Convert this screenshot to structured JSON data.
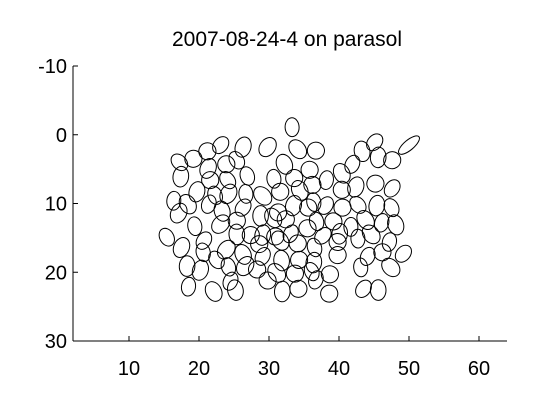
{
  "chart_data": {
    "type": "scatter",
    "title": "2007-08-24-4 on parasol",
    "xlabel": "",
    "ylabel": "",
    "xlim": [
      2,
      64
    ],
    "ylim": [
      -10,
      30
    ],
    "y_axis_reversed": true,
    "grid": false,
    "legend": "none",
    "x_ticks": [
      "10",
      "20",
      "30",
      "40",
      "50",
      "60"
    ],
    "x_tick_values": [
      10,
      20,
      30,
      40,
      50,
      60
    ],
    "y_ticks": [
      "-10",
      "0",
      "10",
      "20",
      "30"
    ],
    "y_tick_values": [
      -10,
      0,
      10,
      20,
      30
    ],
    "series": [
      {
        "marker": "ellipse",
        "points": [
          [
            17.2,
            4.0
          ],
          [
            17.4,
            6.1
          ],
          [
            19.2,
            3.5
          ],
          [
            21.3,
            4.9
          ],
          [
            21.2,
            2.4
          ],
          [
            23.1,
            1.5
          ],
          [
            23.9,
            4.3
          ],
          [
            25.4,
            3.7
          ],
          [
            26.3,
            1.8
          ],
          [
            26.9,
            6.0
          ],
          [
            29.8,
            1.8
          ],
          [
            33.3,
            -1.1
          ],
          [
            34.1,
            2.1
          ],
          [
            36.7,
            2.3
          ],
          [
            32.2,
            4.3
          ],
          [
            35.8,
            5.1
          ],
          [
            30.7,
            6.4
          ],
          [
            33.6,
            6.3
          ],
          [
            38.2,
            6.6
          ],
          [
            40.4,
            5.6
          ],
          [
            41.9,
            4.3
          ],
          [
            43.3,
            2.4
          ],
          [
            45.1,
            1.1
          ],
          [
            45.6,
            3.3
          ],
          [
            47.6,
            3.7
          ],
          [
            42.4,
            7.6
          ],
          [
            45.2,
            7.1
          ],
          [
            47.6,
            7.8
          ],
          [
            21.6,
            6.6
          ],
          [
            24.1,
            6.6
          ],
          [
            19.7,
            8.3
          ],
          [
            22.3,
            8.8
          ],
          [
            24.2,
            8.6
          ],
          [
            26.7,
            8.6
          ],
          [
            29.1,
            8.9
          ],
          [
            31.6,
            8.3
          ],
          [
            34.4,
            8.1
          ],
          [
            36.2,
            7.3
          ],
          [
            36.4,
            9.8
          ],
          [
            40.4,
            8.0
          ],
          [
            16.4,
            9.6
          ],
          [
            18.4,
            10.1
          ],
          [
            21.4,
            10.1
          ],
          [
            23.3,
            11.1
          ],
          [
            26.3,
            10.6
          ],
          [
            28.8,
            11.8
          ],
          [
            31.3,
            11.3
          ],
          [
            33.5,
            10.3
          ],
          [
            35.6,
            10.6
          ],
          [
            38.1,
            10.3
          ],
          [
            40.5,
            10.6
          ],
          [
            42.7,
            10.2
          ],
          [
            45.4,
            10.3
          ],
          [
            47.5,
            10.6
          ],
          [
            17.1,
            11.4
          ],
          [
            19.4,
            13.3
          ],
          [
            23.1,
            13.0
          ],
          [
            25.4,
            12.5
          ],
          [
            30.6,
            12.1
          ],
          [
            32.4,
            12.3
          ],
          [
            36.8,
            12.6
          ],
          [
            39.2,
            12.6
          ],
          [
            41.7,
            13.4
          ],
          [
            43.8,
            12.4
          ],
          [
            46.1,
            12.8
          ],
          [
            48.1,
            13.1
          ],
          [
            20.7,
            15.4
          ],
          [
            25.4,
            14.5
          ],
          [
            27.4,
            14.6
          ],
          [
            29.1,
            14.6
          ],
          [
            30.9,
            14.8
          ],
          [
            33.1,
            14.4
          ],
          [
            35.5,
            13.6
          ],
          [
            37.7,
            14.7
          ],
          [
            40.1,
            14.4
          ],
          [
            15.4,
            14.9
          ],
          [
            17.5,
            16.4
          ],
          [
            20.6,
            17.1
          ],
          [
            23.9,
            16.7
          ],
          [
            28.6,
            15.9
          ],
          [
            31.6,
            15.4
          ],
          [
            34.1,
            15.8
          ],
          [
            36.5,
            16.4
          ],
          [
            39.8,
            15.6
          ],
          [
            42.7,
            15.1
          ],
          [
            44.6,
            14.5
          ],
          [
            47.2,
            15.6
          ],
          [
            26.3,
            17.4
          ],
          [
            29.1,
            17.7
          ],
          [
            31.8,
            18.3
          ],
          [
            34.3,
            18.2
          ],
          [
            36.4,
            18.6
          ],
          [
            39.8,
            17.5
          ],
          [
            44.1,
            17.7
          ],
          [
            46.2,
            17.1
          ],
          [
            49.2,
            17.3
          ],
          [
            18.3,
            19.1
          ],
          [
            22.5,
            18.2
          ],
          [
            20.2,
            19.7
          ],
          [
            24.2,
            19.2
          ],
          [
            26.6,
            19.1
          ],
          [
            28.3,
            19.6
          ],
          [
            31.1,
            20.1
          ],
          [
            33.7,
            20.2
          ],
          [
            36.1,
            19.9
          ],
          [
            38.7,
            20.3
          ],
          [
            43.1,
            19.3
          ],
          [
            47.4,
            19.3
          ],
          [
            18.5,
            22.1
          ],
          [
            22.1,
            22.8
          ],
          [
            24.5,
            21.3
          ],
          [
            25.2,
            22.6
          ],
          [
            29.8,
            21.2
          ],
          [
            31.9,
            22.8
          ],
          [
            34.2,
            22.4
          ],
          [
            36.7,
            21.1
          ],
          [
            38.6,
            23.1
          ],
          [
            43.5,
            22.4
          ],
          [
            45.6,
            22.6
          ]
        ],
        "outlier": [
          50.0,
          1.5
        ]
      }
    ]
  }
}
